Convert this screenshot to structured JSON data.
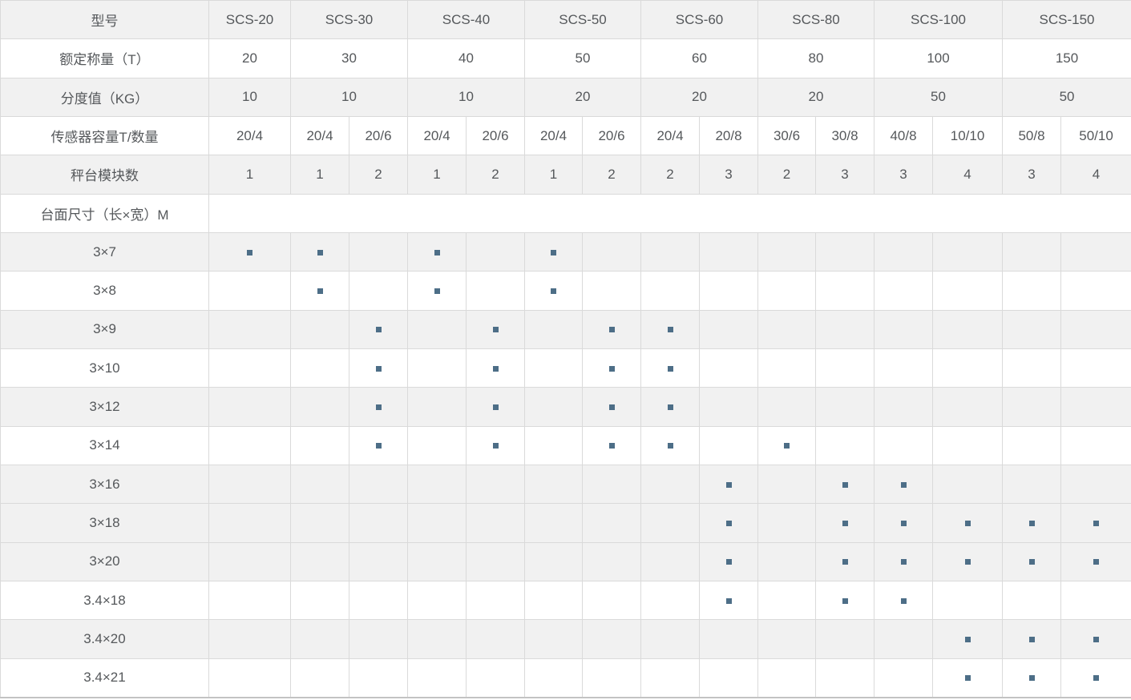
{
  "chart_data": {
    "type": "table",
    "model_row_label": "型号",
    "models": [
      {
        "name": "SCS-20",
        "span": 1
      },
      {
        "name": "SCS-30",
        "span": 2
      },
      {
        "name": "SCS-40",
        "span": 2
      },
      {
        "name": "SCS-50",
        "span": 2
      },
      {
        "name": "SCS-60",
        "span": 2
      },
      {
        "name": "SCS-80",
        "span": 2
      },
      {
        "name": "SCS-100",
        "span": 2
      },
      {
        "name": "SCS-150",
        "span": 2
      }
    ],
    "capacity_row": {
      "label": "额定称量（T）",
      "values": [
        "20",
        "30",
        "40",
        "50",
        "60",
        "80",
        "100",
        "150"
      ]
    },
    "division_row": {
      "label": "分度值（KG）",
      "values": [
        "10",
        "10",
        "10",
        "20",
        "20",
        "20",
        "50",
        "50"
      ]
    },
    "sensor_row": {
      "label": "传感器容量T/数量",
      "values": [
        "20/4",
        "20/4",
        "20/6",
        "20/4",
        "20/6",
        "20/4",
        "20/6",
        "20/4",
        "20/8",
        "30/6",
        "30/8",
        "40/8",
        "10/10",
        "50/8",
        "50/10"
      ]
    },
    "module_row": {
      "label": "秤台模块数",
      "values": [
        "1",
        "1",
        "2",
        "1",
        "2",
        "1",
        "2",
        "2",
        "3",
        "2",
        "3",
        "3",
        "4",
        "3",
        "4"
      ]
    },
    "platform_row": {
      "label": "台面尺寸（长×宽）M"
    },
    "dimension_rows": [
      {
        "label": "3×7",
        "marked_columns": [
          1,
          2,
          4,
          6
        ],
        "shaded": true
      },
      {
        "label": "3×8",
        "marked_columns": [
          2,
          4,
          6
        ],
        "shaded": false
      },
      {
        "label": "3×9",
        "marked_columns": [
          3,
          5,
          7,
          8
        ],
        "shaded": true
      },
      {
        "label": "3×10",
        "marked_columns": [
          3,
          5,
          7,
          8
        ],
        "shaded": false
      },
      {
        "label": "3×12",
        "marked_columns": [
          3,
          5,
          7,
          8
        ],
        "shaded": true
      },
      {
        "label": "3×14",
        "marked_columns": [
          3,
          5,
          7,
          8,
          10
        ],
        "shaded": false
      },
      {
        "label": "3×16",
        "marked_columns": [
          9,
          11,
          12
        ],
        "shaded": true
      },
      {
        "label": "3×18",
        "marked_columns": [
          9,
          11,
          12,
          13,
          14,
          15
        ],
        "shaded": true
      },
      {
        "label": "3×20",
        "marked_columns": [
          9,
          11,
          12,
          13,
          14,
          15
        ],
        "shaded": true
      },
      {
        "label": "3.4×18",
        "marked_columns": [
          9,
          11,
          12
        ],
        "shaded": false
      },
      {
        "label": "3.4×20",
        "marked_columns": [
          13,
          14,
          15
        ],
        "shaded": true
      },
      {
        "label": "3.4×21",
        "marked_columns": [
          13,
          14,
          15
        ],
        "shaded": false
      }
    ],
    "colors": {
      "marker": "#4d6e87",
      "shaded_row_bg": "#f1f1f1",
      "border": "#dadada",
      "text": "#55585b"
    },
    "layout": {
      "sub_columns": 15,
      "legend": "marker square = platform size available for that sensor configuration"
    }
  }
}
